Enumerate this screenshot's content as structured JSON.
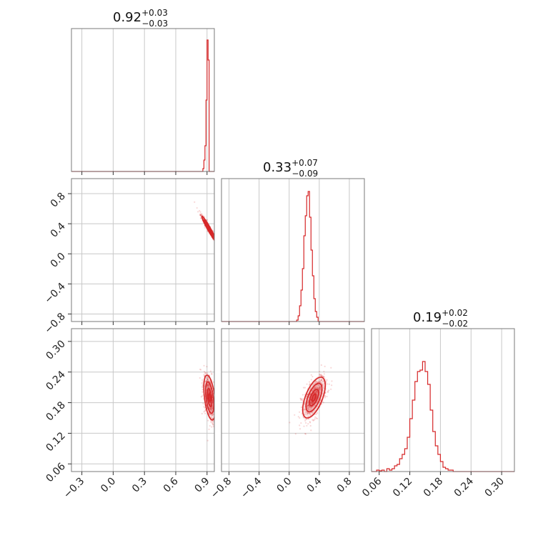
{
  "chart_data": {
    "type": "corner",
    "color": "#d62728",
    "parameters": [
      {
        "median": "0.92",
        "plus": "+0.03",
        "minus": "−0.03",
        "range": [
          -0.4,
          0.97
        ],
        "ticks": [
          -0.3,
          0.0,
          0.3,
          0.6,
          0.9
        ],
        "tick_labels": [
          "−0.3",
          "0.0",
          "0.3",
          "0.6",
          "0.9"
        ]
      },
      {
        "median": "0.33",
        "plus": "+0.07",
        "minus": "−0.09",
        "range": [
          -0.9,
          1.0
        ],
        "ticks": [
          -0.8,
          -0.4,
          0.0,
          0.4,
          0.8
        ],
        "tick_labels": [
          "−0.8",
          "−0.4",
          "0.0",
          "0.4",
          "0.8"
        ]
      },
      {
        "median": "0.19",
        "plus": "+0.02",
        "minus": "−0.02",
        "range": [
          0.045,
          0.325
        ],
        "ticks": [
          0.06,
          0.12,
          0.18,
          0.24,
          0.3
        ],
        "tick_labels": [
          "0.06",
          "0.12",
          "0.18",
          "0.24",
          "0.30"
        ]
      }
    ],
    "histograms": [
      {
        "bin_edges_start": 0.86,
        "bin_width": 0.01,
        "counts": [
          0.02,
          0.08,
          0.18,
          0.5,
          0.92,
          0.78
        ]
      },
      {
        "bin_edges_start": 0.1,
        "bin_width": 0.019,
        "counts": [
          0.01,
          0.04,
          0.11,
          0.22,
          0.37,
          0.6,
          0.74,
          0.88,
          0.91,
          0.73,
          0.5,
          0.32,
          0.16,
          0.07,
          0.03
        ]
      },
      {
        "bin_edges_start": 0.055,
        "bin_width": 0.005,
        "counts": [
          0.01,
          0.005,
          0.01,
          0.0,
          0.02,
          0.01,
          0.02,
          0.04,
          0.05,
          0.09,
          0.12,
          0.16,
          0.24,
          0.37,
          0.5,
          0.63,
          0.7,
          0.71,
          0.77,
          0.7,
          0.61,
          0.43,
          0.28,
          0.18,
          0.12,
          0.07,
          0.03,
          0.02,
          0.01,
          0.01
        ]
      }
    ],
    "contours": [
      {
        "pair": [
          1,
          0
        ],
        "center": [
          0.92,
          0.33
        ],
        "sigma": [
          0.035,
          0.085
        ],
        "corr": -0.97
      },
      {
        "pair": [
          2,
          0
        ],
        "center": [
          0.925,
          0.19
        ],
        "sigma": [
          0.028,
          0.022
        ],
        "corr": -0.45
      },
      {
        "pair": [
          2,
          1
        ],
        "center": [
          0.33,
          0.19
        ],
        "sigma": [
          0.075,
          0.02
        ],
        "corr": 0.6
      }
    ]
  }
}
